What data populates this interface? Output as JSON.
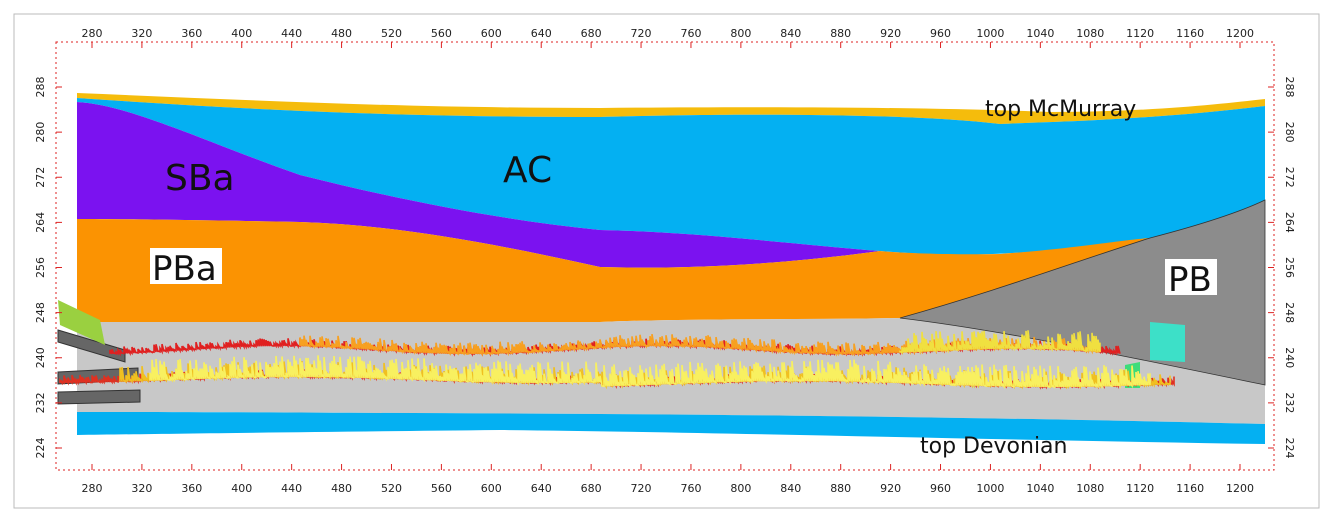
{
  "axes": {
    "x_ticks": [
      280,
      320,
      360,
      400,
      440,
      480,
      520,
      560,
      600,
      640,
      680,
      720,
      760,
      800,
      840,
      880,
      920,
      960,
      1000,
      1040,
      1080,
      1120,
      1160,
      1200
    ],
    "y_ticks": [
      288,
      280,
      272,
      264,
      256,
      248,
      240,
      232,
      224
    ]
  },
  "labels": {
    "sba": "SBa",
    "ac": "AC",
    "pba": "PBa",
    "pb": "PB",
    "top_mcmurray": "top McMurray",
    "top_devonian": "top Devonian"
  }
}
